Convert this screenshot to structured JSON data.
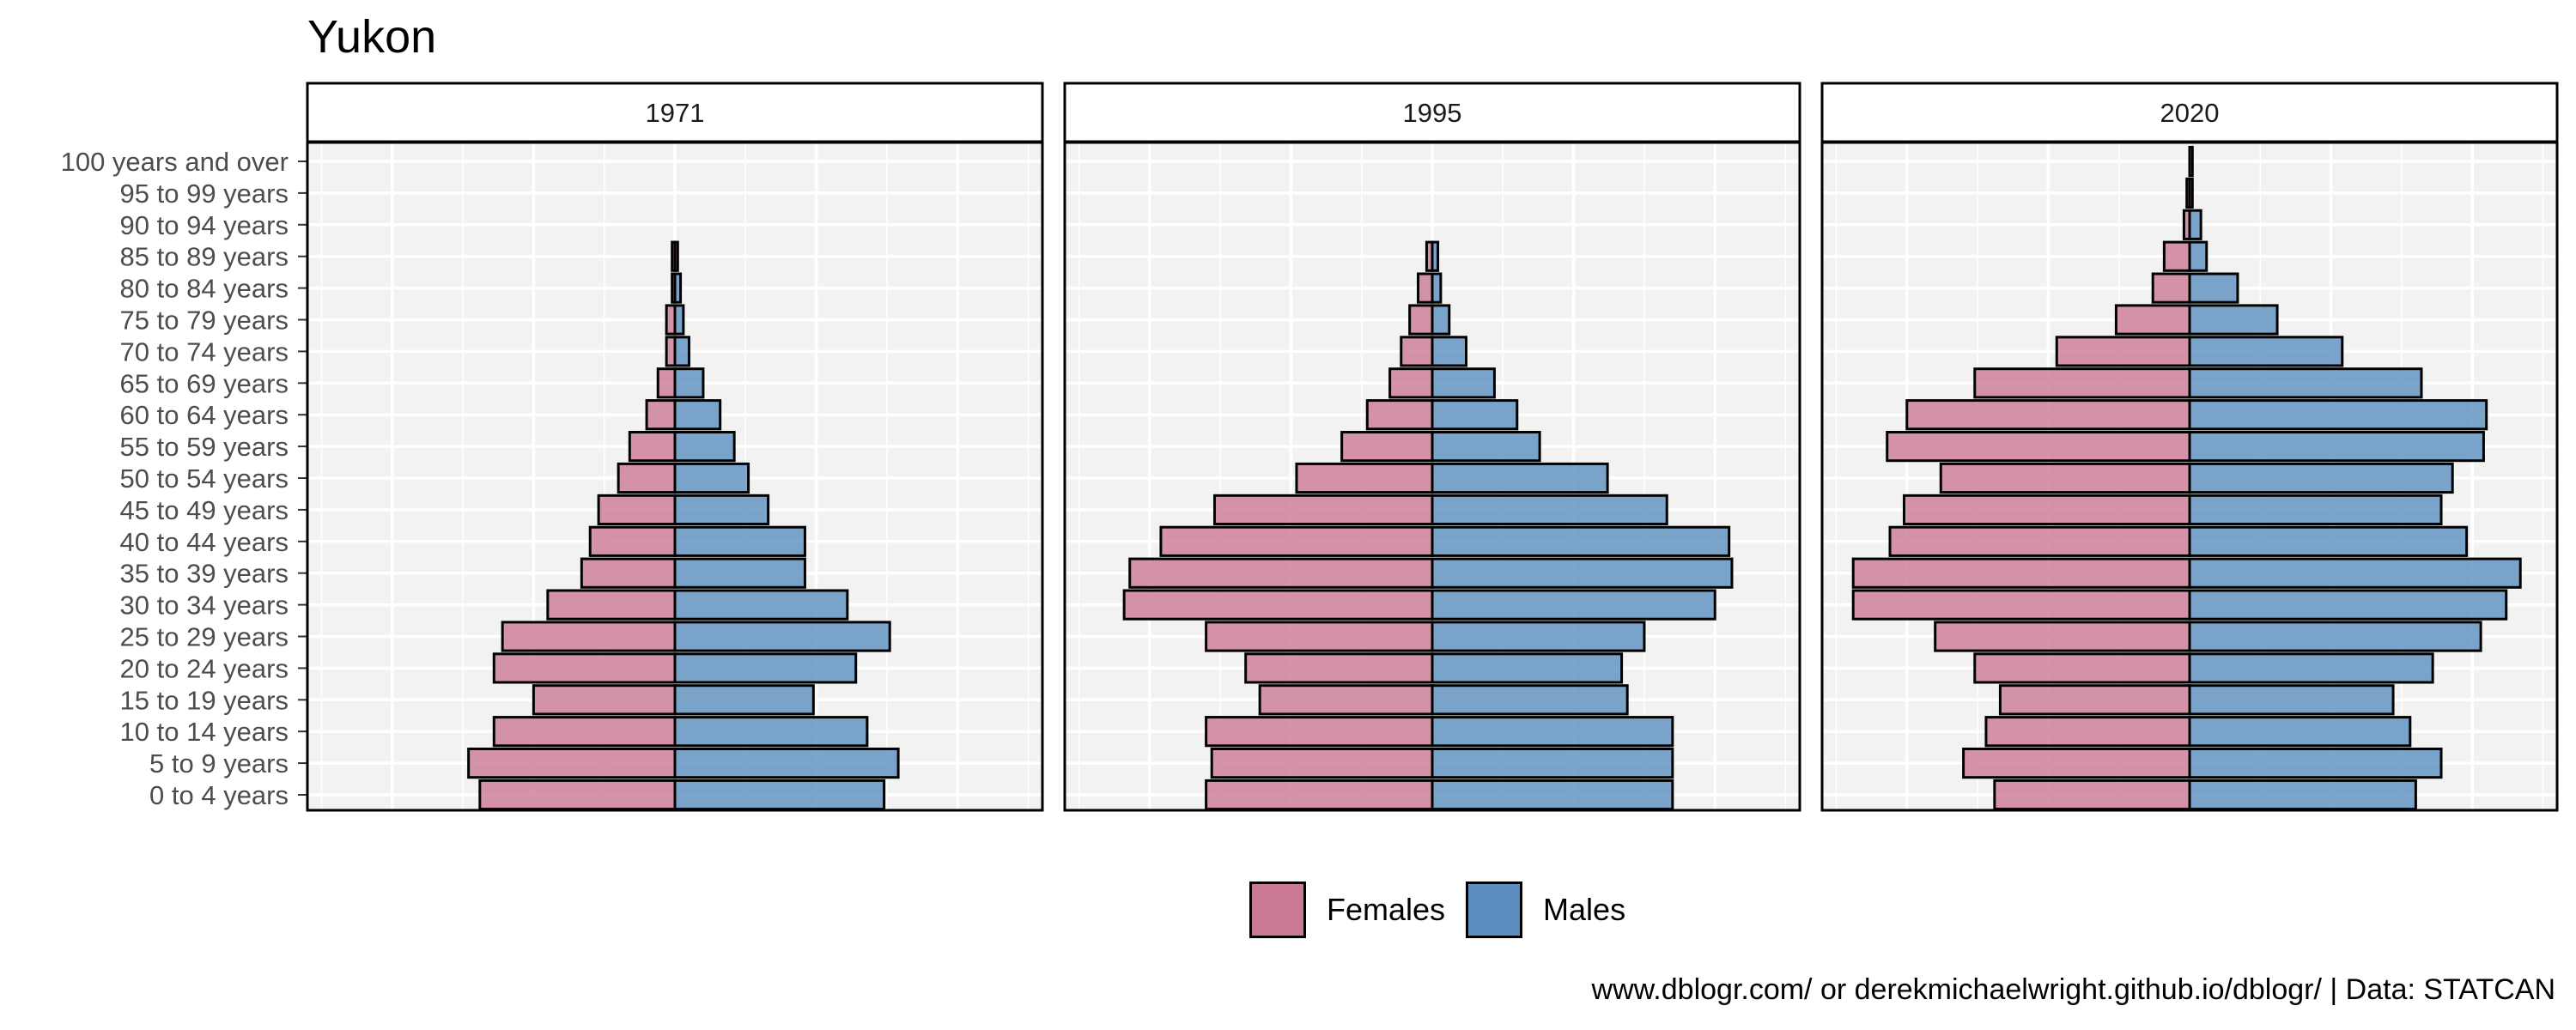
{
  "title": "Yukon",
  "legend": {
    "items": [
      {
        "label": "Females",
        "color": "#cc7994"
      },
      {
        "label": "Males",
        "color": "#5b8fbf"
      }
    ]
  },
  "caption": "www.dblogr.com/ or derekmichaelwright.github.io/dblogr/ | Data: STATCAN",
  "chart_data": {
    "type": "bar",
    "orientation": "horizontal-diverging",
    "facets": [
      "1971",
      "1995",
      "2020"
    ],
    "categories": [
      "0 to 4 years",
      "5 to 9 years",
      "10 to 14 years",
      "15 to 19 years",
      "20 to 24 years",
      "25 to 29 years",
      "30 to 34 years",
      "35 to 39 years",
      "40 to 44 years",
      "45 to 49 years",
      "50 to 54 years",
      "55 to 59 years",
      "60 to 64 years",
      "65 to 69 years",
      "70 to 74 years",
      "75 to 79 years",
      "80 to 84 years",
      "85 to 89 years",
      "90 to 94 years",
      "95 to 99 years",
      "100 years and over"
    ],
    "xlim": [
      -1.3,
      1.3
    ],
    "ylabel": "",
    "xlabel": "",
    "grid": true,
    "legend_position": "bottom",
    "series": [
      {
        "name": "Females",
        "facet": "1971",
        "values": [
          -0.69,
          -0.73,
          -0.64,
          -0.5,
          -0.64,
          -0.61,
          -0.45,
          -0.33,
          -0.3,
          -0.27,
          -0.2,
          -0.16,
          -0.1,
          -0.06,
          -0.03,
          -0.03,
          -0.01,
          -0.01,
          0,
          0,
          0
        ]
      },
      {
        "name": "Males",
        "facet": "1971",
        "values": [
          0.74,
          0.79,
          0.68,
          0.49,
          0.64,
          0.76,
          0.61,
          0.46,
          0.46,
          0.33,
          0.26,
          0.21,
          0.16,
          0.1,
          0.05,
          0.03,
          0.02,
          0.01,
          0,
          0,
          0
        ]
      },
      {
        "name": "Females",
        "facet": "1995",
        "values": [
          -0.8,
          -0.78,
          -0.8,
          -0.61,
          -0.66,
          -0.8,
          -1.09,
          -1.07,
          -0.96,
          -0.77,
          -0.48,
          -0.32,
          -0.23,
          -0.15,
          -0.11,
          -0.08,
          -0.05,
          -0.02,
          0,
          0,
          0
        ]
      },
      {
        "name": "Males",
        "facet": "1995",
        "values": [
          0.85,
          0.85,
          0.85,
          0.69,
          0.67,
          0.75,
          1.0,
          1.06,
          1.05,
          0.83,
          0.62,
          0.38,
          0.3,
          0.22,
          0.12,
          0.06,
          0.03,
          0.02,
          0,
          0,
          0
        ]
      },
      {
        "name": "Females",
        "facet": "2020",
        "values": [
          -0.69,
          -0.8,
          -0.72,
          -0.67,
          -0.76,
          -0.9,
          -1.19,
          -1.19,
          -1.06,
          -1.01,
          -0.88,
          -1.07,
          -1.0,
          -0.76,
          -0.47,
          -0.26,
          -0.13,
          -0.09,
          -0.02,
          -0.01,
          0
        ]
      },
      {
        "name": "Males",
        "facet": "2020",
        "values": [
          0.8,
          0.89,
          0.78,
          0.72,
          0.86,
          1.03,
          1.12,
          1.17,
          0.98,
          0.89,
          0.93,
          1.04,
          1.05,
          0.82,
          0.54,
          0.31,
          0.17,
          0.06,
          0.04,
          0.01,
          0.01
        ]
      }
    ]
  }
}
